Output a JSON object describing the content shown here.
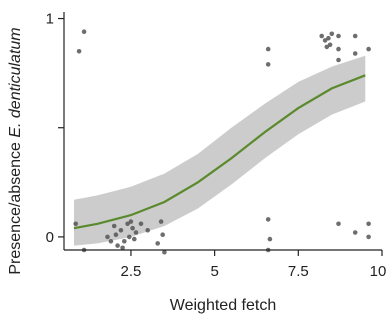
{
  "chart_data": {
    "type": "scatter",
    "xlabel": "Weighted fetch",
    "ylabel_prefix": "Presence/absence ",
    "ylabel_species": "E. denticulatum",
    "xlim": [
      0.5,
      10
    ],
    "ylim": [
      -0.06,
      1.03
    ],
    "xticks": [
      2.5,
      5,
      7.5,
      10
    ],
    "xtick_labels": [
      "2.5",
      "5",
      "7.5",
      "10"
    ],
    "yticks": [
      0,
      0.5,
      1
    ],
    "ytick_labels": [
      "0",
      "",
      "1"
    ],
    "grid": false,
    "colors": {
      "fit_line": "#5a8a2c",
      "ci_band": "#cccccc",
      "points": "#555555",
      "axis": "#222222"
    },
    "fit_curve": {
      "x": [
        0.8,
        1.5,
        2.5,
        3.5,
        4.5,
        5.5,
        6.5,
        7.5,
        8.5,
        9.5
      ],
      "y": [
        0.04,
        0.06,
        0.1,
        0.16,
        0.25,
        0.36,
        0.48,
        0.59,
        0.68,
        0.74
      ],
      "lower": [
        -0.04,
        -0.03,
        0.0,
        0.05,
        0.13,
        0.24,
        0.36,
        0.47,
        0.56,
        0.62
      ],
      "upper": [
        0.17,
        0.19,
        0.23,
        0.29,
        0.38,
        0.5,
        0.61,
        0.71,
        0.78,
        0.83
      ]
    },
    "points": [
      {
        "x": 0.85,
        "y": 0.06
      },
      {
        "x": 0.95,
        "y": 0.85
      },
      {
        "x": 1.1,
        "y": 0.94
      },
      {
        "x": 1.1,
        "y": -0.06
      },
      {
        "x": 1.8,
        "y": 0.0
      },
      {
        "x": 1.9,
        "y": -0.02
      },
      {
        "x": 2.0,
        "y": 0.05
      },
      {
        "x": 2.05,
        "y": 0.01
      },
      {
        "x": 2.1,
        "y": -0.04
      },
      {
        "x": 2.2,
        "y": 0.03
      },
      {
        "x": 2.25,
        "y": -0.05
      },
      {
        "x": 2.3,
        "y": -0.02
      },
      {
        "x": 2.4,
        "y": 0.06
      },
      {
        "x": 2.45,
        "y": 0.0
      },
      {
        "x": 2.5,
        "y": 0.07
      },
      {
        "x": 2.55,
        "y": 0.04
      },
      {
        "x": 2.6,
        "y": -0.01
      },
      {
        "x": 2.65,
        "y": 0.02
      },
      {
        "x": 2.8,
        "y": 0.06
      },
      {
        "x": 3.0,
        "y": 0.03
      },
      {
        "x": 3.3,
        "y": -0.03
      },
      {
        "x": 3.4,
        "y": 0.07
      },
      {
        "x": 3.45,
        "y": 0.01
      },
      {
        "x": 3.5,
        "y": -0.07
      },
      {
        "x": 6.6,
        "y": 0.86
      },
      {
        "x": 6.6,
        "y": 0.79
      },
      {
        "x": 6.6,
        "y": 0.08
      },
      {
        "x": 6.6,
        "y": -0.06
      },
      {
        "x": 6.65,
        "y": -0.01
      },
      {
        "x": 8.2,
        "y": 0.92
      },
      {
        "x": 8.3,
        "y": 0.9
      },
      {
        "x": 8.35,
        "y": 0.87
      },
      {
        "x": 8.4,
        "y": 0.91
      },
      {
        "x": 8.45,
        "y": 0.88
      },
      {
        "x": 8.5,
        "y": 0.93
      },
      {
        "x": 8.7,
        "y": 0.86
      },
      {
        "x": 8.7,
        "y": 0.81
      },
      {
        "x": 8.7,
        "y": 0.92
      },
      {
        "x": 8.7,
        "y": 0.06
      },
      {
        "x": 9.2,
        "y": 0.92
      },
      {
        "x": 9.2,
        "y": 0.84
      },
      {
        "x": 9.2,
        "y": 0.02
      },
      {
        "x": 9.6,
        "y": 0.06
      },
      {
        "x": 9.6,
        "y": 0.0
      },
      {
        "x": 9.6,
        "y": 0.86
      }
    ]
  }
}
